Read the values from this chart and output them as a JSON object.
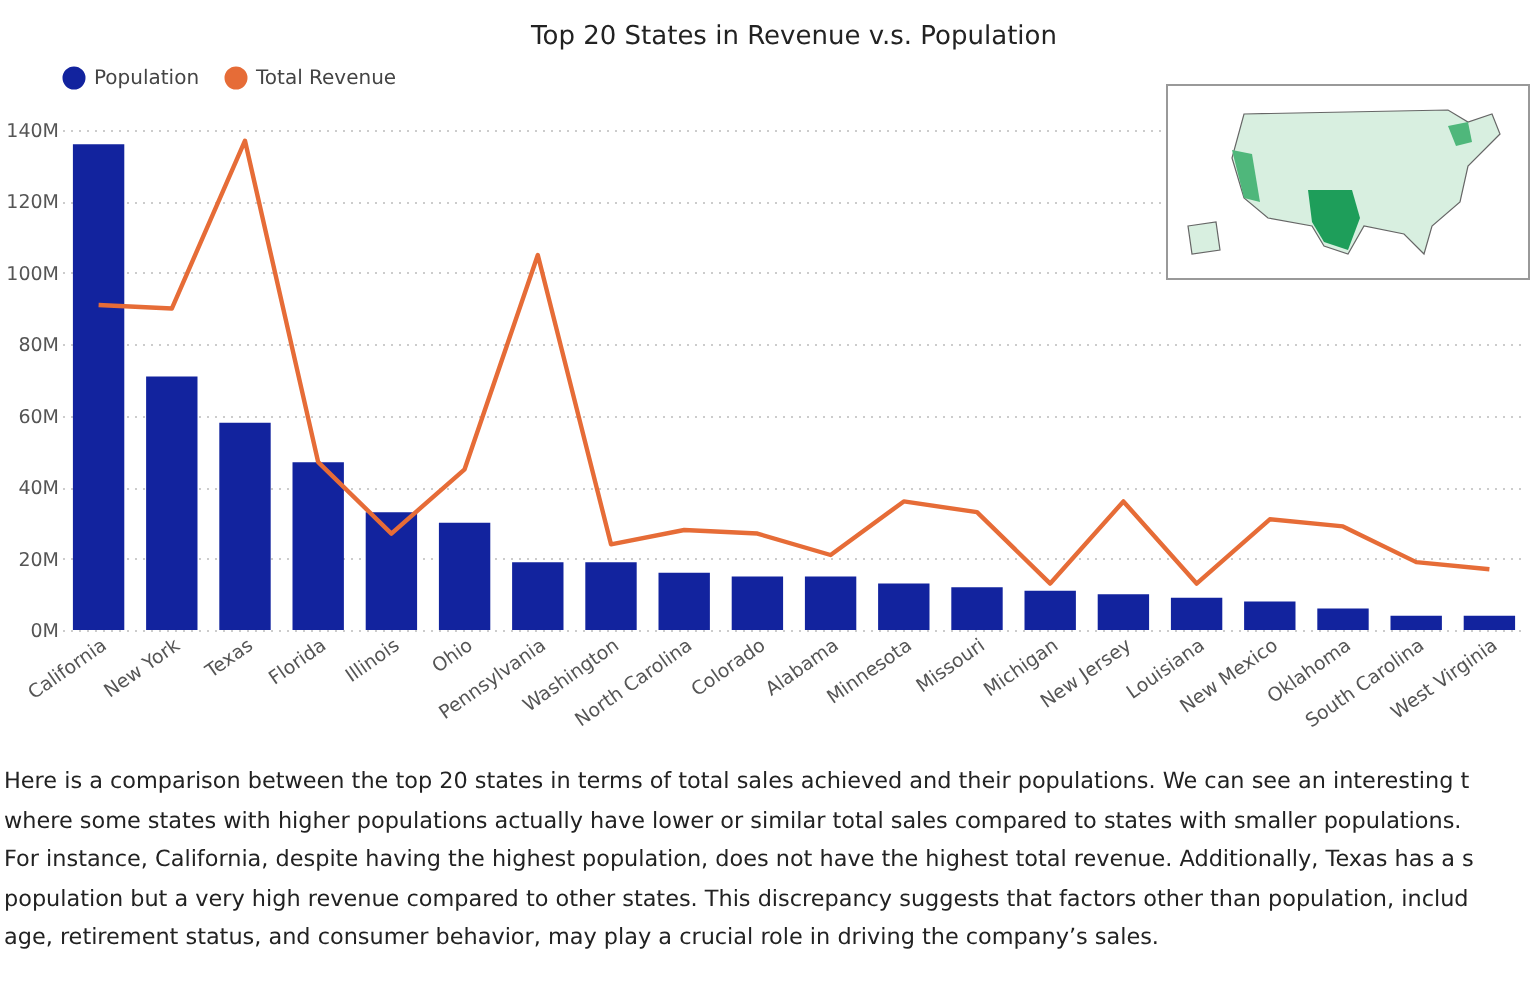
{
  "chart_data": {
    "type": "bar",
    "title": "Top 20 States in Revenue v.s. Population",
    "categories": [
      "California",
      "New York",
      "Texas",
      "Florida",
      "Illinois",
      "Ohio",
      "Pennsylvania",
      "Washington",
      "North Carolina",
      "Colorado",
      "Alabama",
      "Minnesota",
      "Missouri",
      "Michigan",
      "New Jersey",
      "Louisiana",
      "New Mexico",
      "Oklahoma",
      "South Carolina",
      "West Virginia"
    ],
    "series": [
      {
        "name": "Population",
        "color": "#12239e",
        "values": [
          136,
          71,
          58,
          47,
          33,
          30,
          19,
          19,
          16,
          15,
          15,
          13,
          12,
          11,
          10,
          9,
          8,
          6,
          4,
          4
        ]
      },
      {
        "name": "Total Revenue",
        "type": "line",
        "color": "#e66c37",
        "values": [
          91,
          90,
          137,
          47,
          27,
          45,
          105,
          24,
          28,
          27,
          21,
          36,
          33,
          13,
          36,
          13,
          31,
          29,
          19,
          17
        ]
      }
    ],
    "ylim": [
      0,
      140
    ],
    "yticks": [
      {
        "value": 0,
        "label": "0M"
      },
      {
        "value": 20,
        "label": "20M"
      },
      {
        "value": 40,
        "label": "40M"
      },
      {
        "value": 60,
        "label": "60M"
      },
      {
        "value": 80,
        "label": "80M"
      },
      {
        "value": 100,
        "label": "100M"
      },
      {
        "value": 120,
        "label": "120M"
      },
      {
        "value": 140,
        "label": "140M"
      }
    ],
    "grid": "y",
    "legend": "top",
    "marker": "none",
    "line_style": "solid",
    "annotations": [
      "Here is a comparison between the top 20 states in terms of total sales achieved and their populations. We can see an interesting t",
      "where some states with higher populations actually have lower or similar total sales compared to states with smaller populations.",
      "For instance, California, despite having the highest population, does not have the highest total revenue. Additionally, Texas has a s",
      "population but a very high revenue compared to other states. This discrepancy suggests that factors other than population, includ",
      "age, retirement status, and consumer behavior, may play a crucial role in driving the company’s sales."
    ]
  }
}
